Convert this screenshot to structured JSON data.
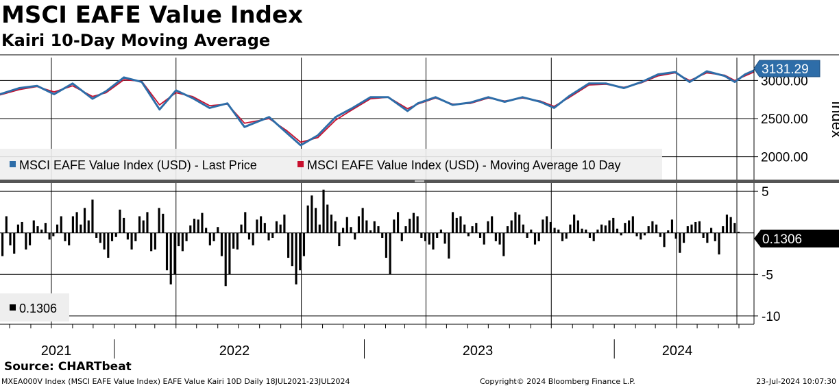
{
  "title": "MSCI EAFE Value Index",
  "subtitle": "Kairi 10-Day Moving Average",
  "source": "Source: CHARTbeat",
  "footer": {
    "left": "MXEA000V Index (MSCI EAFE Value Index) EAFE Value Kairi 10D  Daily 18JUL2021-23JUL2024",
    "center": "Copyright© 2024 Bloomberg Finance L.P.",
    "right": "23-Jul-2024 10:07:30"
  },
  "colors": {
    "price": "#2e6da8",
    "ma": "#c8102e",
    "kairi": "#000000",
    "grid": "#000000",
    "last_price_tag_bg": "#2e6da8",
    "kairi_tag_bg": "#000000"
  },
  "chart_data": [
    {
      "type": "line",
      "panel": "price",
      "ylabel": "Index",
      "ylim": [
        1700,
        3300
      ],
      "yticks": [
        "2000.00",
        "2500.00",
        "3000.00"
      ],
      "legend_placement": "bottom-left",
      "last_value_label": "3131.29",
      "series": [
        {
          "name": "MSCI EAFE Value Index (USD) - Last Price",
          "color": "#2e6da8",
          "x": [
            "2021-07-18",
            "2021-08-15",
            "2021-09-10",
            "2021-10-05",
            "2021-11-01",
            "2021-11-30",
            "2021-12-20",
            "2022-01-15",
            "2022-02-10",
            "2022-03-08",
            "2022-04-01",
            "2022-04-25",
            "2022-05-20",
            "2022-06-15",
            "2022-07-10",
            "2022-08-15",
            "2022-09-10",
            "2022-09-30",
            "2022-10-25",
            "2022-11-20",
            "2022-12-15",
            "2023-01-10",
            "2023-02-05",
            "2023-03-05",
            "2023-03-20",
            "2023-04-15",
            "2023-05-10",
            "2023-06-05",
            "2023-07-01",
            "2023-07-25",
            "2023-08-20",
            "2023-09-15",
            "2023-10-05",
            "2023-10-28",
            "2023-11-25",
            "2023-12-20",
            "2024-01-15",
            "2024-02-10",
            "2024-03-05",
            "2024-03-30",
            "2024-04-20",
            "2024-05-15",
            "2024-06-10",
            "2024-06-25",
            "2024-07-10",
            "2024-07-23"
          ],
          "values": [
            2820,
            2900,
            2930,
            2820,
            2960,
            2760,
            2860,
            3040,
            2980,
            2620,
            2870,
            2770,
            2640,
            2700,
            2390,
            2520,
            2310,
            2150,
            2280,
            2520,
            2640,
            2780,
            2780,
            2600,
            2700,
            2780,
            2680,
            2710,
            2780,
            2720,
            2780,
            2720,
            2640,
            2800,
            2960,
            2960,
            2900,
            2980,
            3080,
            3110,
            2980,
            3120,
            3060,
            2980,
            3080,
            3131.29
          ]
        },
        {
          "name": "MSCI EAFE Value Index (USD) - Moving Average 10 Day",
          "color": "#c8102e",
          "x": [
            "2021-07-18",
            "2021-08-15",
            "2021-09-10",
            "2021-10-05",
            "2021-11-01",
            "2021-11-30",
            "2021-12-20",
            "2022-01-15",
            "2022-02-10",
            "2022-03-08",
            "2022-04-01",
            "2022-04-25",
            "2022-05-20",
            "2022-06-15",
            "2022-07-10",
            "2022-08-15",
            "2022-09-10",
            "2022-09-30",
            "2022-10-25",
            "2022-11-20",
            "2022-12-15",
            "2023-01-10",
            "2023-02-05",
            "2023-03-05",
            "2023-03-20",
            "2023-04-15",
            "2023-05-10",
            "2023-06-05",
            "2023-07-01",
            "2023-07-25",
            "2023-08-20",
            "2023-09-15",
            "2023-10-05",
            "2023-10-28",
            "2023-11-25",
            "2023-12-20",
            "2024-01-15",
            "2024-02-10",
            "2024-03-05",
            "2024-03-30",
            "2024-04-20",
            "2024-05-15",
            "2024-06-10",
            "2024-06-25",
            "2024-07-10",
            "2024-07-23"
          ],
          "values": [
            2810,
            2880,
            2920,
            2850,
            2930,
            2790,
            2840,
            3010,
            2990,
            2680,
            2840,
            2790,
            2670,
            2690,
            2440,
            2500,
            2340,
            2190,
            2250,
            2480,
            2620,
            2760,
            2780,
            2630,
            2690,
            2770,
            2690,
            2700,
            2770,
            2730,
            2770,
            2730,
            2660,
            2780,
            2940,
            2950,
            2910,
            2970,
            3060,
            3100,
            3000,
            3100,
            3070,
            3000,
            3060,
            3110
          ]
        }
      ]
    },
    {
      "type": "bar",
      "panel": "kairi",
      "ylim": [
        -11,
        6
      ],
      "yticks": [
        "5",
        "-5",
        "-10"
      ],
      "last_value_label": "0.1306",
      "series": [
        {
          "name": "0.1306",
          "color": "#000000",
          "values": [
            -2.8,
            2.0,
            -1.5,
            -2.5,
            1.0,
            1.3,
            -2.0,
            -1.5,
            1.5,
            0.8,
            0.4,
            1.2,
            -0.8,
            -0.4,
            1.0,
            2.0,
            -1.0,
            -1.5,
            2.0,
            2.5,
            1.0,
            3.0,
            1.5,
            4.0,
            -0.6,
            -1.2,
            -2.0,
            -3.0,
            -1.0,
            -0.5,
            2.8,
            1.8,
            -0.8,
            -2.0,
            -1.0,
            2.0,
            1.5,
            2.5,
            -2.2,
            -2.0,
            3.0,
            2.3,
            -4.5,
            -6.2,
            -5.0,
            -1.6,
            -2.2,
            -1.0,
            0.9,
            1.7,
            1.6,
            2.4,
            0.6,
            -1.5,
            -1.0,
            0.7,
            -2.8,
            -6.4,
            -5.0,
            -1.9,
            -2.0,
            1.0,
            2.5,
            -0.8,
            -1.5,
            1.6,
            2.0,
            1.2,
            -0.9,
            -0.6,
            1.4,
            1.0,
            2.2,
            -3.0,
            -4.0,
            -6.2,
            -4.5,
            -2.8,
            3.3,
            4.5,
            3.0,
            1.0,
            5.2,
            3.4,
            2.2,
            1.4,
            -1.6,
            0.6,
            1.9,
            0.7,
            -0.8,
            2.0,
            3.0,
            1.5,
            0.3,
            1.4,
            0.8,
            -0.6,
            -3.0,
            -5.0,
            1.6,
            2.5,
            -1.0,
            0.8,
            1.7,
            2.4,
            2.0,
            -0.6,
            -1.0,
            -1.4,
            -2.0,
            -0.6,
            0.4,
            -1.3,
            -3.1,
            2.5,
            1.8,
            2.0,
            1.0,
            -0.4,
            0.8,
            1.2,
            -0.6,
            -1.4,
            1.4,
            2.0,
            -1.0,
            -1.4,
            -2.8,
            0.8,
            1.5,
            2.5,
            2.2,
            1.0,
            -0.6,
            0.4,
            -1.4,
            -1.0,
            1.6,
            2.0,
            1.3,
            0.6,
            0.4,
            -1.0,
            -0.7,
            1.0,
            2.2,
            1.5,
            0.5,
            0.4,
            -0.6,
            -1.0,
            0.4,
            1.0,
            0.9,
            1.5,
            1.8,
            0.5,
            -0.3,
            1.2,
            1.5,
            2.0,
            -0.4,
            -0.8,
            -0.3,
            0.8,
            1.4,
            1.0,
            -0.5,
            -1.7,
            0.3,
            1.6,
            -0.7,
            -2.4,
            -1.2,
            0.8,
            1.0,
            1.3,
            1.4,
            -0.6,
            -1.2,
            0.6,
            -1.0,
            -2.6,
            0.8,
            2.2,
            1.9,
            1.2,
            0.1306
          ]
        }
      ]
    }
  ],
  "x_axis": {
    "year_labels": [
      "2021",
      "2022",
      "2023",
      "2024"
    ],
    "range": [
      "2021-07-18",
      "2024-07-23"
    ]
  },
  "legend": {
    "price_label": "MSCI EAFE Value Index (USD) - Last Price",
    "ma_label": "MSCI EAFE Value Index (USD) - Moving Average 10 Day",
    "kairi_label": "0.1306"
  }
}
